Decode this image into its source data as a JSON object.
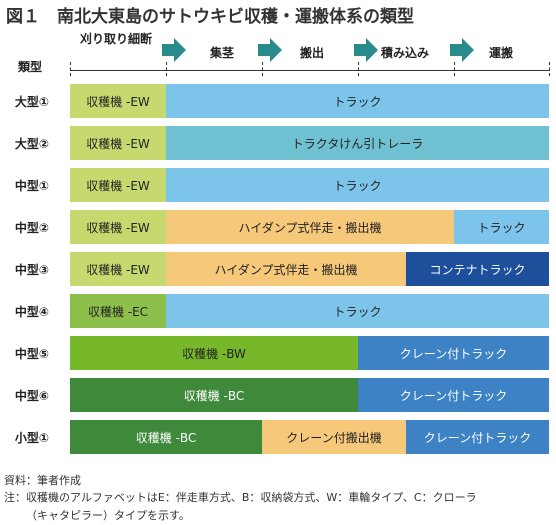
{
  "title": "図１　南北大東島のサトウキビ収穫・運搬体系の類型",
  "header": {
    "type_label": "類型",
    "stages": [
      "刈り取り細断",
      "集茎",
      "搬出",
      "積み込み",
      "運搬"
    ]
  },
  "colors": {
    "green_light": "#c6d96f",
    "green_mid": "#8cc04a",
    "green_bright": "#76b82a",
    "green_dark": "#3e8a3a",
    "sky": "#7cc4ea",
    "teal": "#6fc0d0",
    "orange": "#f6c87a",
    "blue_mid": "#3d82c4",
    "navy": "#1d4f9a",
    "arrow": "#2a8b8b"
  },
  "rows": [
    {
      "label": "大型①",
      "segments": [
        {
          "text": "収穫機 -EW",
          "color": "green_light"
        },
        {
          "text": "トラック",
          "color": "sky"
        }
      ]
    },
    {
      "label": "大型②",
      "segments": [
        {
          "text": "収穫機 -EW",
          "color": "green_light"
        },
        {
          "text": "トラクタけん引トレーラ",
          "color": "teal"
        }
      ]
    },
    {
      "label": "中型①",
      "segments": [
        {
          "text": "収穫機 -EW",
          "color": "green_light"
        },
        {
          "text": "トラック",
          "color": "sky"
        }
      ]
    },
    {
      "label": "中型②",
      "segments": [
        {
          "text": "収穫機 -EW",
          "color": "green_light"
        },
        {
          "text": "ハイダンプ式伴走・搬出機",
          "color": "orange"
        },
        {
          "text": "トラック",
          "color": "sky"
        }
      ]
    },
    {
      "label": "中型③",
      "segments": [
        {
          "text": "収穫機 -EW",
          "color": "green_light"
        },
        {
          "text": "ハイダンプ式伴走・搬出機",
          "color": "orange"
        },
        {
          "text": "コンテナトラック",
          "color": "navy"
        }
      ]
    },
    {
      "label": "中型④",
      "segments": [
        {
          "text": "収穫機 -EC",
          "color": "green_mid"
        },
        {
          "text": "トラック",
          "color": "sky"
        }
      ]
    },
    {
      "label": "中型⑤",
      "segments": [
        {
          "text": "収穫機 -BW",
          "color": "green_bright"
        },
        {
          "text": "クレーン付トラック",
          "color": "blue_mid"
        }
      ]
    },
    {
      "label": "中型⑥",
      "segments": [
        {
          "text": "収穫機 -BC",
          "color": "green_dark"
        },
        {
          "text": "クレーン付トラック",
          "color": "blue_mid"
        }
      ]
    },
    {
      "label": "小型①",
      "segments": [
        {
          "text": "収穫機 -BC",
          "color": "green_dark"
        },
        {
          "text": "クレーン付搬出機",
          "color": "orange"
        },
        {
          "text": "クレーン付トラック",
          "color": "blue_mid"
        }
      ]
    }
  ],
  "notes": {
    "source": "資料：筆者作成",
    "note_line1": "注：収穫機のアルファベットはE：伴走車方式、B：収納袋方式、W：車輪タイプ、C：クローラ",
    "note_line2": "（キャタピラー）タイプを示す。"
  }
}
